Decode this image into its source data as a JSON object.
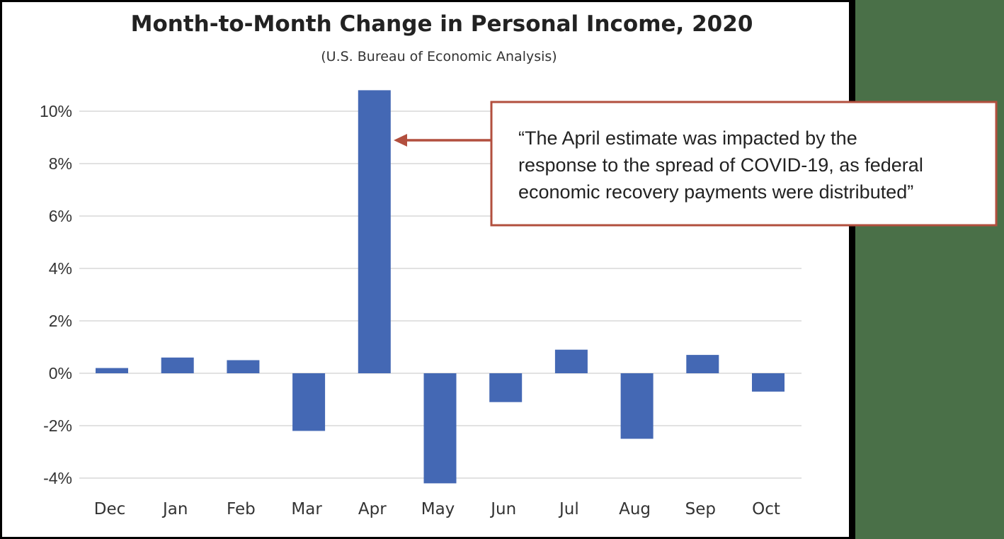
{
  "colors": {
    "bar": "#4468b4",
    "callout_border": "#b24f3e",
    "arrow": "#b24f3e",
    "gridline": "#d9d9d9",
    "background_side": "#4a7048"
  },
  "chart_data": {
    "type": "bar",
    "title": "Month-to-Month Change in Personal Income, 2020",
    "subtitle": "(U.S. Bureau of Economic Analysis)",
    "categories": [
      "Dec",
      "Jan",
      "Feb",
      "Mar",
      "Apr",
      "May",
      "Jun",
      "Jul",
      "Aug",
      "Sep",
      "Oct"
    ],
    "values": [
      0.2,
      0.6,
      0.5,
      -2.2,
      10.8,
      -4.2,
      -1.1,
      0.9,
      -2.5,
      0.7,
      -0.7
    ],
    "ylim": [
      -4,
      10
    ],
    "yticks": [
      10,
      8,
      6,
      4,
      2,
      0,
      -2,
      -4
    ],
    "ytick_labels": [
      "10%",
      "8%",
      "6%",
      "4%",
      "2%",
      "0%",
      "-2%",
      "-4%"
    ],
    "grid": true,
    "annotation": {
      "target_category": "Apr",
      "lines": [
        "“The April estimate was impacted by the",
        "response to the spread of COVID-19, as federal",
        "economic recovery payments were distributed”"
      ]
    }
  }
}
